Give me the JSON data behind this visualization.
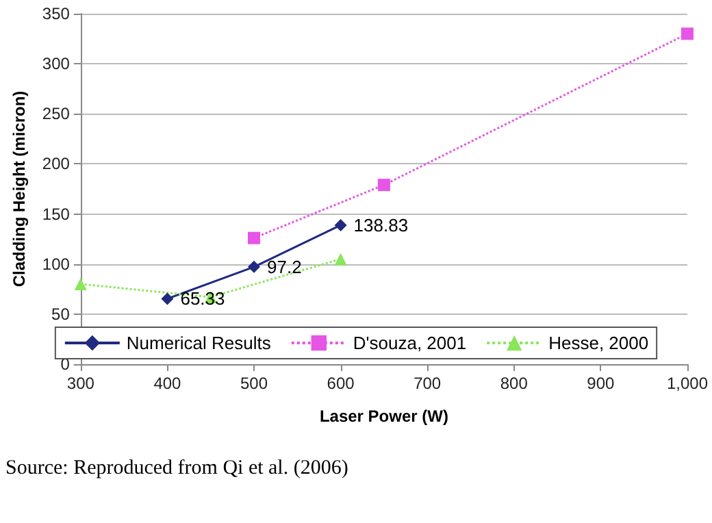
{
  "chart_data": {
    "type": "line",
    "xlabel": "Laser Power (W)",
    "ylabel": "Cladding Height (micron)",
    "xlim": [
      300,
      1000
    ],
    "xticks": [
      300,
      400,
      500,
      600,
      700,
      800,
      900,
      {
        "value": 1000,
        "label": "1,000"
      }
    ],
    "ylim": [
      0,
      350
    ],
    "yticks": [
      0,
      50,
      100,
      150,
      200,
      250,
      300,
      350
    ],
    "grid": "y",
    "legend": "bottom",
    "series": [
      {
        "name": "Numerical Results",
        "color": "#1f2a80",
        "x": [
          400,
          500,
          600
        ],
        "values": [
          65.33,
          97.2,
          138.83
        ],
        "marker": "diamond",
        "line_style": "solid",
        "value_labels": [
          "65.33",
          "97.2",
          "138.83"
        ]
      },
      {
        "name": "D'souza, 2001",
        "color": "#e655e6",
        "x": [
          500,
          650,
          1000
        ],
        "values": [
          126,
          179,
          330
        ],
        "marker": "square",
        "line_style": "dotted"
      },
      {
        "name": "Hesse, 2000",
        "color": "#8ae65a",
        "x": [
          300,
          450,
          600
        ],
        "values": [
          80,
          67,
          105
        ],
        "marker": "triangle",
        "line_style": "dotted"
      }
    ],
    "annotations": [
      "Source: Reproduced from Qi et al. (2006)"
    ]
  }
}
